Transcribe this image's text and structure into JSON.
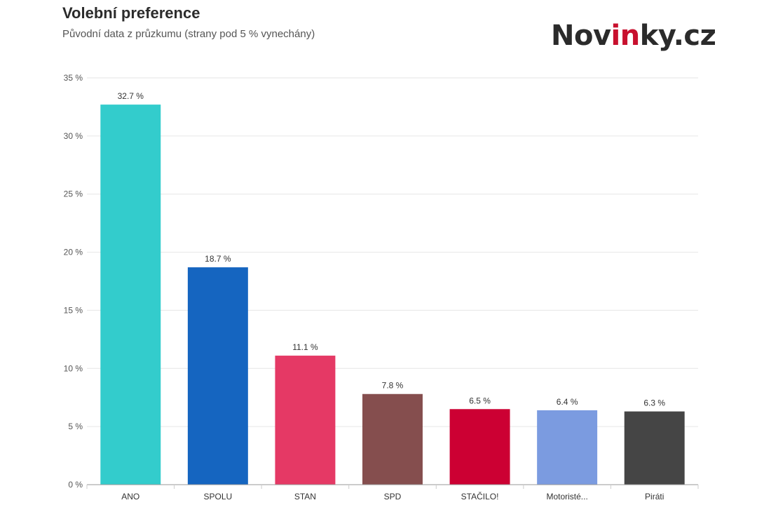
{
  "header": {
    "title": "Volební preference",
    "subtitle": "Původní data z průzkumu (strany pod 5 % vynechány)"
  },
  "logo": {
    "part1": "Nov",
    "part2": "in",
    "part3": "ky.cz"
  },
  "chart_data": {
    "type": "bar",
    "title": "Volební preference",
    "subtitle": "Původní data z průzkumu (strany pod 5 % vynechány)",
    "categories": [
      "ANO",
      "SPOLU",
      "STAN",
      "SPD",
      "STAČILO!",
      "Motoristé...",
      "Piráti"
    ],
    "values": [
      32.7,
      18.7,
      11.1,
      7.8,
      6.5,
      6.4,
      6.3
    ],
    "data_labels": [
      "32.7 %",
      "18.7 %",
      "11.1 %",
      "7.8 %",
      "6.5 %",
      "6.4 %",
      "6.3 %"
    ],
    "colors": [
      "#33cccc",
      "#1565c0",
      "#e53965",
      "#854e4e",
      "#cc0033",
      "#7b9be0",
      "#454545"
    ],
    "ylim": [
      0,
      35
    ],
    "y_ticks": [
      0,
      5,
      10,
      15,
      20,
      25,
      30,
      35
    ],
    "y_tick_labels": [
      "0 %",
      "5 %",
      "10 %",
      "15 %",
      "20 %",
      "25 %",
      "30 %",
      "35 %"
    ],
    "grid": true,
    "legend": "none",
    "xlabel": "",
    "ylabel": ""
  }
}
